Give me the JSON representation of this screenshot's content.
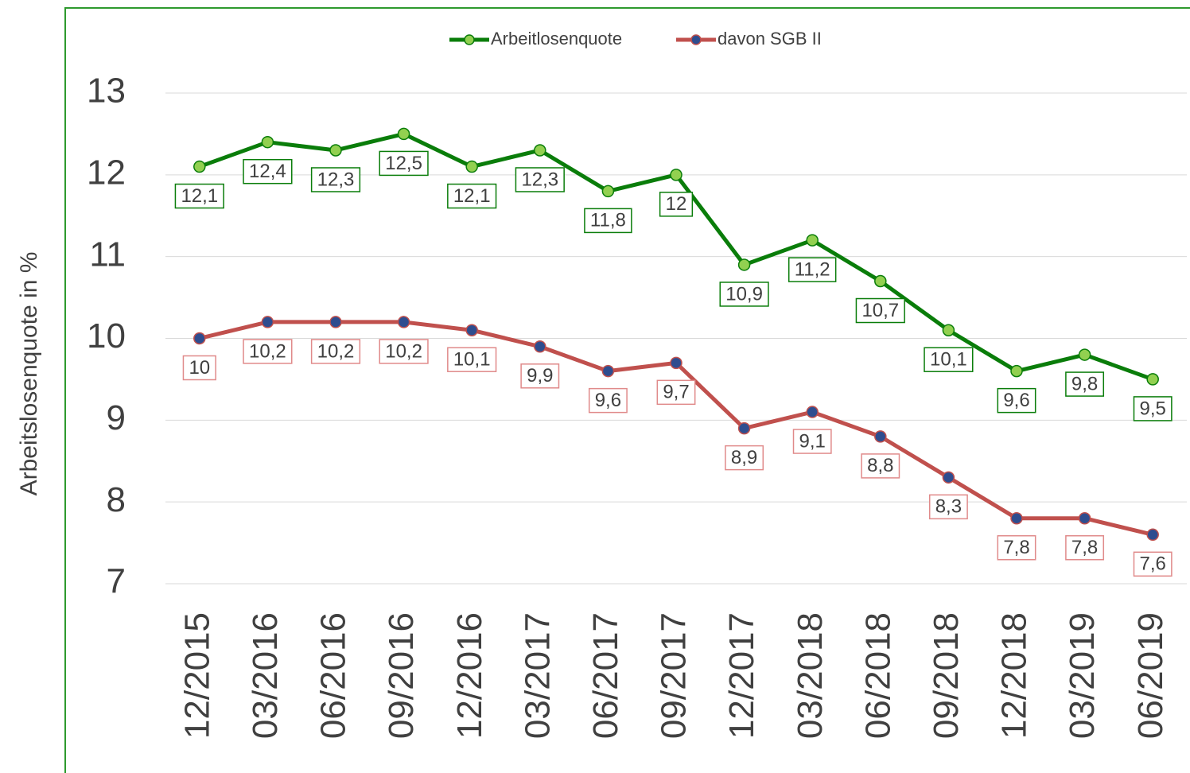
{
  "chart_data": {
    "type": "line",
    "y_label": "Arbeitslosenquote in %",
    "categories": [
      "12/2015",
      "03/2016",
      "06/2016",
      "09/2016",
      "12/2016",
      "03/2017",
      "06/2017",
      "09/2017",
      "12/2017",
      "03/2018",
      "06/2018",
      "09/2018",
      "12/2018",
      "03/2019",
      "06/2019"
    ],
    "series": [
      {
        "name": "Arbeitlosenquote",
        "color": "#0a7d0a",
        "marker_color": "#92d050",
        "label_border": "#0a7d0a",
        "values": [
          12.1,
          12.4,
          12.3,
          12.5,
          12.1,
          12.3,
          11.8,
          12,
          10.9,
          11.2,
          10.7,
          10.1,
          9.6,
          9.8,
          9.5
        ],
        "value_labels": [
          "12,1",
          "12,4",
          "12,3",
          "12,5",
          "12,1",
          "12,3",
          "11,8",
          "12",
          "10,9",
          "11,2",
          "10,7",
          "10,1",
          "9,6",
          "9,8",
          "9,5"
        ]
      },
      {
        "name": "davon SGB II",
        "color": "#c0504d",
        "marker_color": "#2e4d8f",
        "label_border": "#e08a8a",
        "values": [
          10,
          10.2,
          10.2,
          10.2,
          10.1,
          9.9,
          9.6,
          9.7,
          8.9,
          9.1,
          8.8,
          8.3,
          7.8,
          7.8,
          7.6
        ],
        "value_labels": [
          "10",
          "10,2",
          "10,2",
          "10,2",
          "10,1",
          "9,9",
          "9,6",
          "9,7",
          "8,9",
          "9,1",
          "8,8",
          "8,3",
          "7,8",
          "7,8",
          "7,6"
        ]
      }
    ],
    "ylim": [
      7,
      13
    ],
    "yticks": [
      7,
      8,
      9,
      10,
      11,
      12,
      13
    ],
    "grid": true,
    "legend": "top"
  }
}
